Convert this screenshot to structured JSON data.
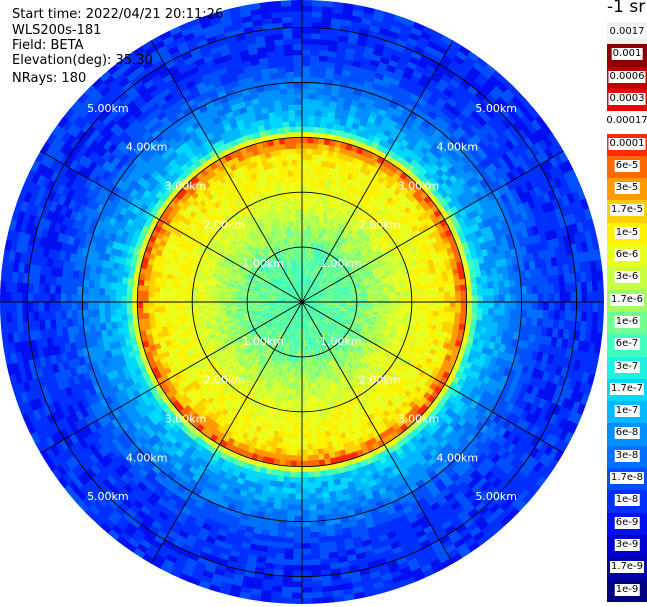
{
  "header": {
    "start_time": "Start time: 2022/04/21 20:11:26",
    "instrument": "WLS200s-181",
    "field": "Field: BETA",
    "elevation": "Elevation(deg): 35.30",
    "nrays": "NRays: 180"
  },
  "chart_data": {
    "type": "heatmap",
    "projection": "polar (PPI scan)",
    "field": "BETA",
    "unit": "-1 sr",
    "range_rings_km": [
      1,
      2,
      3,
      4,
      5
    ],
    "range_ring_labels": [
      "1.00km",
      "2.00km",
      "3.00km",
      "4.00km",
      "5.00km"
    ],
    "azimuth_spokes_deg": [
      0,
      30,
      60,
      90,
      120,
      150,
      180,
      210,
      240,
      270,
      300,
      330
    ],
    "max_range_km": 5.5,
    "colorbar": {
      "scale": "log",
      "ticks": [
        "0.0017",
        "0.001",
        "0.0006",
        "0.0003",
        "0.00017",
        "0.0001",
        "6e-5",
        "3e-5",
        "1.7e-5",
        "1e-5",
        "6e-6",
        "3e-6",
        "1.7e-6",
        "1e-6",
        "6e-7",
        "3e-7",
        "1.7e-7",
        "1e-7",
        "6e-8",
        "3e-8",
        "1.7e-8",
        "1e-8",
        "6e-9",
        "3e-9",
        "1.7e-9",
        "1e-9"
      ],
      "colors": [
        "#f0f0f0",
        "#8b0000",
        "#c00000",
        "#f00000",
        "#ffffff",
        "#ff2a00",
        "#ff6a00",
        "#ff9a00",
        "#ffd000",
        "#fff200",
        "#e8ff20",
        "#c8ff40",
        "#a0ff60",
        "#70ff90",
        "#40ffc0",
        "#20f0e0",
        "#00d8ff",
        "#00b8ff",
        "#0090ff",
        "#0070ff",
        "#0050ff",
        "#0030ff",
        "#0010f0",
        "#0000d0",
        "#0000a8",
        "#000080"
      ]
    },
    "profile": [
      {
        "range_km": 0.0,
        "beta": "6e-7"
      },
      {
        "range_km": 1.0,
        "beta": "1e-6"
      },
      {
        "range_km": 2.0,
        "beta": "6e-6"
      },
      {
        "range_km": 2.7,
        "beta": "1e-5"
      },
      {
        "range_km": 2.95,
        "beta": "6e-5"
      },
      {
        "range_km": 3.2,
        "beta": "1.7e-7"
      },
      {
        "range_km": 4.5,
        "beta": "1e-8"
      },
      {
        "range_km": 5.5,
        "beta": "1e-8"
      }
    ]
  }
}
